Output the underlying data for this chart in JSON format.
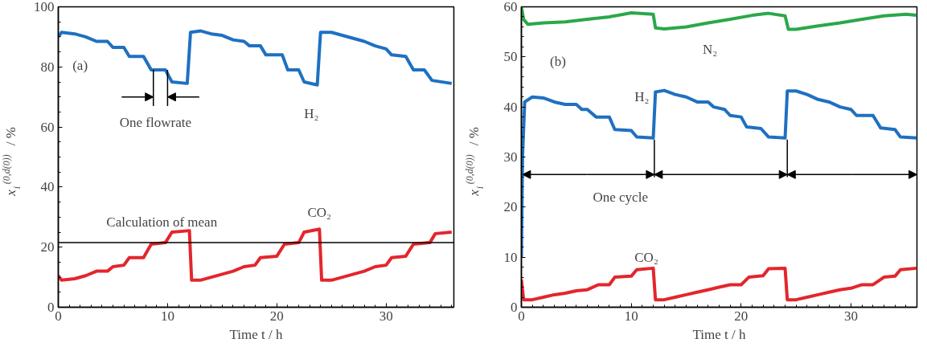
{
  "chart_data": [
    {
      "type": "line",
      "xlabel": "Time t / h",
      "ylabel": "x$_{i}$$^{(0,d(0))}$ / %",
      "xlim": [
        0,
        36.2
      ],
      "xticks": [
        0,
        10,
        20,
        30
      ],
      "ylim": [
        0,
        100
      ],
      "yticks": [
        0,
        20,
        40,
        60,
        80,
        100
      ],
      "grid": false,
      "legend": false,
      "series": [
        {
          "name": "H₂",
          "color": "#1f70c1",
          "x": [
            0,
            0.3,
            1.5,
            2.5,
            3.5,
            4.5,
            5,
            6,
            6.5,
            7.8,
            8.5,
            9.8,
            10.4,
            11.8,
            12.1,
            13,
            14,
            15,
            16,
            17,
            17.5,
            18.5,
            19,
            20.5,
            21,
            22,
            22.5,
            23.7,
            24,
            25,
            26,
            27,
            28,
            29,
            30,
            30.5,
            31.8,
            32.5,
            33.5,
            34.2,
            36
          ],
          "values": [
            90,
            91.5,
            91,
            90,
            88.5,
            88.5,
            86.5,
            86.5,
            83.5,
            83.5,
            79,
            79,
            75,
            74.5,
            91.5,
            92,
            91,
            90.5,
            89,
            88.5,
            87,
            87,
            84,
            84,
            79,
            79,
            75,
            74,
            91.5,
            91.5,
            90.5,
            89.5,
            88.5,
            87,
            86,
            84,
            83.5,
            79,
            79,
            75.5,
            74.5
          ]
        },
        {
          "name": "CO₂",
          "color": "#e3262c",
          "x": [
            0,
            0.3,
            1.5,
            2.5,
            3.5,
            4.5,
            5,
            6,
            6.5,
            7.8,
            8.5,
            9.8,
            10.4,
            12,
            12.2,
            13,
            14,
            15,
            16,
            17,
            18,
            18.5,
            20,
            20.7,
            22,
            22.5,
            23.9,
            24.1,
            25,
            26,
            27,
            28,
            29,
            30,
            30.5,
            31.8,
            32.5,
            34,
            34.5,
            36
          ],
          "values": [
            10.5,
            9,
            9.5,
            10.5,
            12,
            12,
            13.5,
            14,
            16.5,
            16.5,
            21,
            21.5,
            25,
            25.5,
            9,
            9,
            10,
            11,
            12,
            13.5,
            14,
            16.5,
            17,
            21,
            21.5,
            25,
            26,
            9,
            9,
            10,
            11,
            12,
            13.5,
            14,
            16.5,
            17,
            21,
            21.5,
            24.5,
            25
          ]
        }
      ],
      "ref_lines": [
        {
          "axis": "y",
          "value": 21.5,
          "color": "#000000"
        }
      ],
      "annotations": [
        "(a)",
        {
          "text": "One flowrate",
          "x": 8.7,
          "y": 79
        },
        {
          "text": "Calculation of mean",
          "x": 4.4,
          "y": 21.5
        }
      ]
    },
    {
      "type": "line",
      "xlabel": "Time t / h",
      "ylabel": "x$_{i}$$^{(0,d(0))}$ / %",
      "xlim": [
        0,
        36
      ],
      "xticks": [
        0,
        10,
        20,
        30
      ],
      "ylim": [
        0,
        60
      ],
      "yticks": [
        0,
        10,
        20,
        30,
        40,
        50,
        60
      ],
      "grid": false,
      "legend": false,
      "series": [
        {
          "name": "N₂",
          "color": "#2aa84a",
          "x": [
            0,
            0.2,
            0.6,
            2,
            4,
            6,
            8,
            10,
            12,
            12.2,
            13,
            15,
            17,
            19,
            21,
            22.5,
            24,
            24.3,
            25,
            27,
            29,
            31,
            33,
            35,
            36
          ],
          "values": [
            60,
            57.5,
            56.5,
            56.8,
            57,
            57.5,
            58,
            58.8,
            58.5,
            55.8,
            55.6,
            56,
            56.8,
            57.5,
            58.3,
            58.7,
            58.2,
            55.5,
            55.5,
            56.2,
            56.8,
            57.5,
            58.2,
            58.5,
            58.3
          ]
        },
        {
          "name": "H₂",
          "color": "#1f70c1",
          "x": [
            0,
            0.1,
            0.3,
            1,
            2,
            3,
            4,
            5,
            5.5,
            6,
            6.8,
            8,
            8.5,
            10,
            10.5,
            12,
            12.2,
            13,
            14,
            15,
            16,
            17,
            17.5,
            18.5,
            19,
            20,
            20.5,
            21.8,
            22.5,
            24,
            24.2,
            25,
            26,
            27,
            28,
            29,
            30,
            30.5,
            32,
            32.7,
            34,
            34.5,
            36
          ],
          "values": [
            10,
            30,
            41,
            42,
            41.8,
            41,
            40.5,
            40.5,
            39.5,
            39.5,
            38,
            38,
            35.5,
            35.3,
            34,
            33.8,
            43,
            43.3,
            42.5,
            42,
            41,
            41,
            40,
            39.5,
            38.3,
            38,
            36,
            35.7,
            34,
            33.8,
            43.2,
            43.2,
            42.5,
            41.5,
            41,
            40,
            39.5,
            38.3,
            38.3,
            35.8,
            35.5,
            34,
            33.8
          ]
        },
        {
          "name": "CO₂",
          "color": "#e3262c",
          "x": [
            0,
            0.2,
            1,
            2,
            3,
            4,
            5,
            6,
            7,
            8,
            8.5,
            10,
            10.5,
            12,
            12.2,
            13,
            14,
            15,
            16,
            17,
            18,
            19,
            20,
            20.7,
            22,
            22.5,
            24,
            24.2,
            25,
            26,
            27,
            28,
            29,
            30,
            31,
            32,
            33,
            34,
            34.5,
            36
          ],
          "values": [
            5.5,
            1.5,
            1.5,
            2,
            2.5,
            2.8,
            3.3,
            3.5,
            4.5,
            4.5,
            6,
            6.2,
            7.5,
            7.8,
            1.5,
            1.5,
            2,
            2.5,
            3,
            3.5,
            4,
            4.5,
            4.5,
            6,
            6.3,
            7.7,
            7.8,
            1.5,
            1.5,
            2,
            2.5,
            3,
            3.5,
            3.8,
            4.5,
            4.5,
            6,
            6.2,
            7.5,
            7.8
          ]
        }
      ],
      "annotations": [
        "(b)",
        {
          "text": "One cycle",
          "x": 12,
          "y": 33.8
        }
      ]
    }
  ]
}
